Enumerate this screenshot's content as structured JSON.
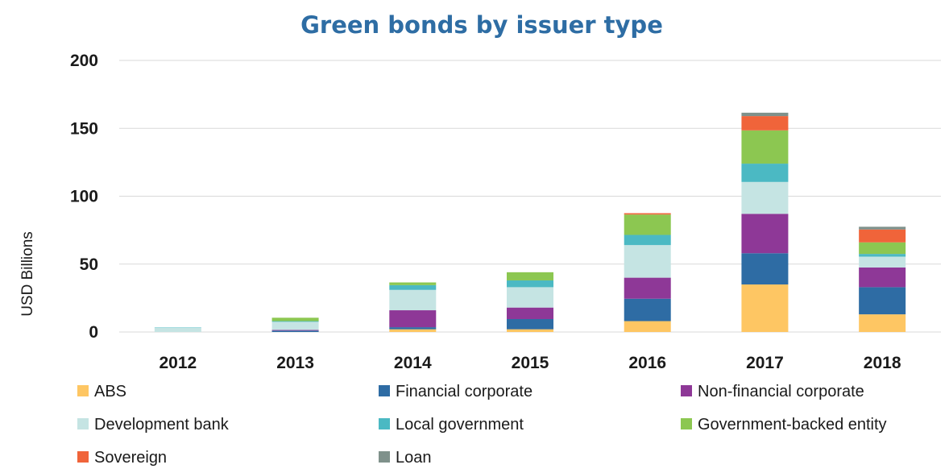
{
  "chart_data": {
    "type": "bar",
    "stacked": true,
    "title": "Green bonds by issuer type",
    "xlabel": "",
    "ylabel": "USD Billions",
    "ylim": [
      0,
      200
    ],
    "yticks": [
      0,
      50,
      100,
      150,
      200
    ],
    "grid": true,
    "legend_position": "bottom",
    "categories": [
      "2012",
      "2013",
      "2014",
      "2015",
      "2016",
      "2017",
      "2018"
    ],
    "series": [
      {
        "name": "ABS",
        "color": "#fec663",
        "values": [
          0,
          0,
          2,
          2,
          8,
          35,
          13
        ]
      },
      {
        "name": "Financial corporate",
        "color": "#2e6ca4",
        "values": [
          0,
          1,
          1.5,
          7.5,
          16.5,
          23,
          20
        ]
      },
      {
        "name": "Non-financial corporate",
        "color": "#8e3897",
        "values": [
          0,
          0.5,
          12.5,
          8.5,
          15.5,
          29,
          14.5
        ]
      },
      {
        "name": "Development bank",
        "color": "#c5e4e3",
        "values": [
          3,
          6,
          15,
          15,
          24,
          23.5,
          8
        ]
      },
      {
        "name": "Local government",
        "color": "#4bb9c3",
        "values": [
          0.3,
          0.5,
          3.5,
          5,
          7.5,
          13.5,
          2
        ]
      },
      {
        "name": "Government-backed entity",
        "color": "#8cc751",
        "values": [
          0,
          2.5,
          2,
          6,
          15,
          24.5,
          8.5
        ]
      },
      {
        "name": "Sovereign",
        "color": "#f0643a",
        "values": [
          0,
          0,
          0,
          0,
          1,
          10.5,
          9.5
        ]
      },
      {
        "name": "Loan",
        "color": "#7f918b",
        "values": [
          0,
          0,
          0,
          0,
          0,
          2.5,
          2
        ]
      }
    ]
  }
}
